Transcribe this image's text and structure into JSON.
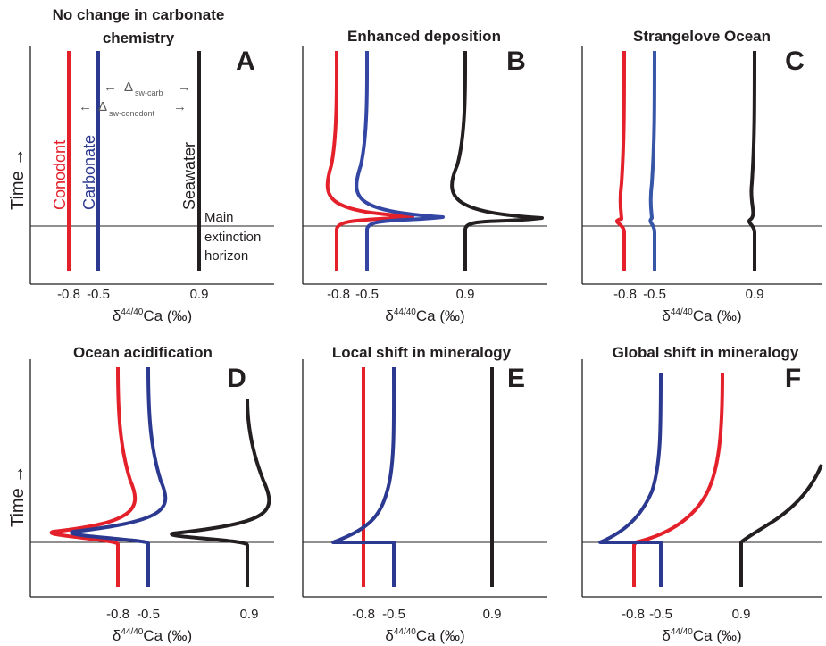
{
  "figure": {
    "y_axis_label": "Time →",
    "colors": {
      "conodont": "#e4202a",
      "carbonate": "#2b3990",
      "carbonate_light": "#3856a8",
      "seawater": "#231f20",
      "axis": "#231f20"
    }
  },
  "annotations": {
    "conodont": "Conodont",
    "carbonate": "Carbonate",
    "seawater": "Seawater",
    "delta_carb": "Δ",
    "delta_carb_sub": "sw-carb",
    "delta_conodont": "Δ",
    "delta_conodont_sub": "sw-conodont",
    "horizon_1": "Main",
    "horizon_2": "extinction",
    "horizon_3": "horizon"
  },
  "chart_data": [
    {
      "panel": "A",
      "title_lines": [
        "No change in carbonate",
        "chemistry"
      ],
      "type": "line",
      "x_ticks": [
        "-0.8",
        "-0.5",
        "0.9"
      ],
      "x_label": {
        "base": "δ",
        "sup": "44/40",
        "rest": "Ca (‰)"
      },
      "scenario": "constant",
      "series": [
        {
          "name": "Conodont",
          "baseline": -0.8,
          "before_event": "constant",
          "event_shift": 0.0
        },
        {
          "name": "Carbonate",
          "baseline": -0.5,
          "before_event": "constant",
          "event_shift": 0.0
        },
        {
          "name": "Seawater",
          "baseline": 0.9,
          "before_event": "constant",
          "event_shift": 0.0
        }
      ]
    },
    {
      "panel": "B",
      "title_lines": [
        "Enhanced deposition"
      ],
      "type": "line",
      "x_ticks": [
        "-0.8",
        "-0.5",
        "0.9"
      ],
      "x_label": {
        "base": "δ",
        "sup": "44/40",
        "rest": "Ca (‰)"
      },
      "scenario": "positive excursion at extinction horizon, then negative lobe and recovery",
      "series": [
        {
          "name": "Conodont",
          "baseline": -0.8,
          "before_event": "constant"
        },
        {
          "name": "Carbonate",
          "baseline": -0.5,
          "before_event": "constant"
        },
        {
          "name": "Seawater",
          "baseline": 0.9,
          "before_event": "constant"
        }
      ]
    },
    {
      "panel": "C",
      "title_lines": [
        "Strangelove Ocean"
      ],
      "type": "line",
      "x_ticks": [
        "-0.8",
        "-0.5",
        "0.9"
      ],
      "x_label": {
        "base": "δ",
        "sup": "44/40",
        "rest": "Ca (‰)"
      },
      "scenario": "small perturbation at extinction horizon",
      "series": [
        {
          "name": "Conodont",
          "baseline": -0.8,
          "before_event": "constant"
        },
        {
          "name": "Carbonate",
          "baseline": -0.5,
          "before_event": "constant"
        },
        {
          "name": "Seawater",
          "baseline": 0.9,
          "before_event": "constant"
        }
      ]
    },
    {
      "panel": "D",
      "title_lines": [
        "Ocean acidification"
      ],
      "type": "line",
      "x_ticks": [
        "-0.8",
        "-0.5",
        "0.9"
      ],
      "x_label": {
        "base": "δ",
        "sup": "44/40",
        "rest": "Ca (‰)"
      },
      "scenario": "negative excursion at extinction horizon, then positive lobe and recovery",
      "series": [
        {
          "name": "Conodont",
          "baseline": -0.8,
          "before_event": "constant"
        },
        {
          "name": "Carbonate",
          "baseline": -0.5,
          "before_event": "constant"
        },
        {
          "name": "Seawater",
          "baseline": 0.9,
          "before_event": "constant"
        }
      ]
    },
    {
      "panel": "E",
      "title_lines": [
        "Local shift in mineralogy"
      ],
      "type": "line",
      "x_ticks": [
        "-0.8",
        "-0.5",
        "0.9"
      ],
      "x_label": {
        "base": "δ",
        "sup": "44/40",
        "rest": "Ca (‰)"
      },
      "scenario": "only carbonate shifts negative then recovers",
      "series": [
        {
          "name": "Conodont",
          "baseline": -0.8,
          "before_event": "constant"
        },
        {
          "name": "Carbonate",
          "baseline": -0.5,
          "before_event": "constant"
        },
        {
          "name": "Seawater",
          "baseline": 0.9,
          "before_event": "constant"
        }
      ]
    },
    {
      "panel": "F",
      "title_lines": [
        "Global shift in mineralogy"
      ],
      "type": "line",
      "x_ticks": [
        "-0.8",
        "-0.5",
        "0.9"
      ],
      "x_label": {
        "base": "δ",
        "sup": "44/40",
        "rest": "Ca (‰)"
      },
      "scenario": "carbonate negative; conodont and seawater positive drift after horizon",
      "series": [
        {
          "name": "Conodont",
          "baseline": -0.8,
          "before_event": "constant"
        },
        {
          "name": "Carbonate",
          "baseline": -0.5,
          "before_event": "constant"
        },
        {
          "name": "Seawater",
          "baseline": 0.9,
          "before_event": "constant"
        }
      ]
    }
  ]
}
